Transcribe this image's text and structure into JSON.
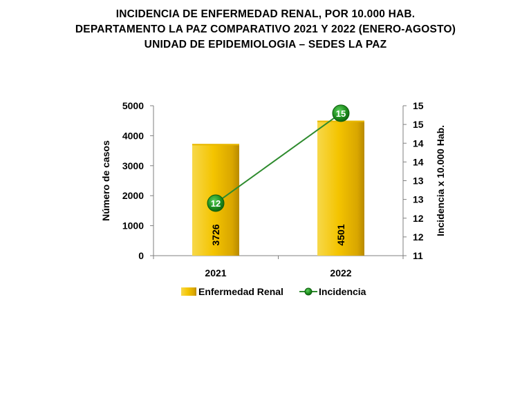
{
  "title_lines": [
    "INCIDENCIA  DE  ENFERMEDAD  RENAL,  POR  10.000  HAB.",
    "DEPARTAMENTO  LA  PAZ  COMPARATIVO  2021  Y  2022  (ENERO-AGOSTO)",
    "UNIDAD DE EPIDEMIOLOGIA – SEDES LA PAZ"
  ],
  "chart_data": {
    "type": "bar",
    "categories": [
      "2021",
      "2022"
    ],
    "series": [
      {
        "name": "Enfermedad Renal",
        "type": "bar",
        "axis": "left",
        "values": [
          3726,
          4501
        ],
        "color": "#F2C200"
      },
      {
        "name": "Incidencia",
        "type": "line",
        "axis": "right",
        "values": [
          12.4,
          14.8
        ],
        "labels": [
          "12",
          "15"
        ],
        "color": "#2E8B2E",
        "marker_color": "#1E8C1E"
      }
    ],
    "ylabel": "Número de casos",
    "ylabel_right": "Incidencia x 10.000 Hab.",
    "ylim": [
      0,
      5000
    ],
    "yticks": [
      "0",
      "1000",
      "2000",
      "3000",
      "4000",
      "5000"
    ],
    "ylim_right": [
      11,
      15
    ],
    "yticks_right": [
      "11",
      "12",
      "12",
      "13",
      "13",
      "14",
      "14",
      "15",
      "15"
    ],
    "legend_position": "bottom",
    "grid": false
  }
}
